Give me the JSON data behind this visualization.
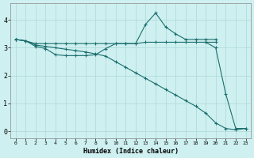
{
  "xlabel": "Humidex (Indice chaleur)",
  "bg_color": "#cff0f0",
  "grid_color": "#aad8d8",
  "line_color": "#1a6e6e",
  "y_ticks": [
    0,
    1,
    2,
    3,
    4
  ],
  "xlim": [
    -0.5,
    23.5
  ],
  "ylim": [
    -0.25,
    4.6
  ],
  "line1_x": [
    0,
    1,
    2,
    3,
    4,
    5,
    6,
    7,
    8,
    9,
    10,
    11,
    12,
    13,
    14,
    15,
    16,
    17,
    18,
    19,
    20
  ],
  "line1_y": [
    3.3,
    3.25,
    3.15,
    3.15,
    3.15,
    3.15,
    3.15,
    3.15,
    3.15,
    3.15,
    3.15,
    3.15,
    3.15,
    3.2,
    3.2,
    3.2,
    3.2,
    3.2,
    3.2,
    3.2,
    3.2
  ],
  "line2_x": [
    0,
    1,
    2,
    3,
    4,
    5,
    6,
    7,
    8,
    9,
    10,
    11,
    12,
    13,
    14,
    15,
    16,
    17,
    18,
    19,
    20
  ],
  "line2_y": [
    3.3,
    3.25,
    3.05,
    2.97,
    2.75,
    2.72,
    2.72,
    2.72,
    2.75,
    2.97,
    3.15,
    3.15,
    3.15,
    3.85,
    4.25,
    3.75,
    3.5,
    3.3,
    3.3,
    3.3,
    3.3
  ],
  "line3_x": [
    0,
    1,
    2,
    3,
    4,
    5,
    6,
    7,
    8,
    9,
    10,
    11,
    12,
    13,
    14,
    15,
    16,
    17,
    18,
    19,
    20,
    21,
    22,
    23
  ],
  "line3_y": [
    3.3,
    3.25,
    3.1,
    3.05,
    3.0,
    2.95,
    2.9,
    2.85,
    2.78,
    2.7,
    2.5,
    2.3,
    2.1,
    1.9,
    1.7,
    1.5,
    1.3,
    1.1,
    0.9,
    0.65,
    0.3,
    0.1,
    0.05,
    0.1
  ],
  "line4_x": [
    19,
    20,
    21,
    22,
    23
  ],
  "line4_y": [
    3.2,
    3.0,
    1.35,
    0.1,
    0.1
  ],
  "marker": "+",
  "markersize": 3,
  "linewidth": 0.8
}
